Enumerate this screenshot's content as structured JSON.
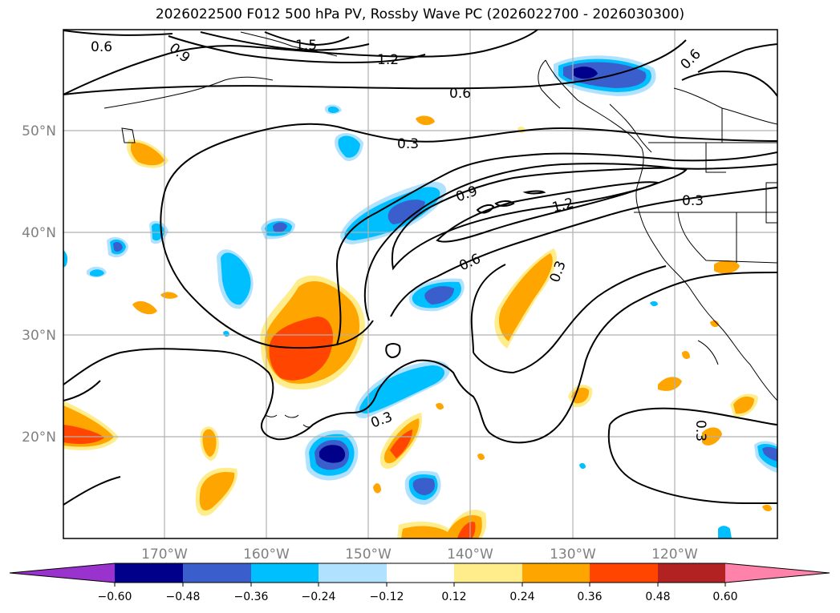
{
  "title": "2026022500 F012 500 hPa PV, Rossby Wave PC (2026022700 - 2026030300)",
  "map": {
    "lon_labels": [
      "170°W",
      "160°W",
      "150°W",
      "140°W",
      "130°W",
      "120°W"
    ],
    "lat_labels": [
      "50°N",
      "40°N",
      "30°N",
      "20°N"
    ],
    "contour_labels": [
      "0.6",
      "0.9",
      "1.5",
      "1.2",
      "0.6",
      "0.6",
      "0.3",
      "0.9",
      "1.2",
      "0.3",
      "0.6",
      "0.3",
      "0.3",
      "0.3"
    ]
  },
  "colorbar": {
    "ticks": [
      "−0.60",
      "−0.48",
      "−0.36",
      "−0.24",
      "−0.12",
      "0.12",
      "0.24",
      "0.36",
      "0.48",
      "0.60"
    ],
    "colors": [
      "#9a32cd",
      "#00008b",
      "#3a5fcd",
      "#00bfff",
      "#b0e2ff",
      "#ffffff",
      "#ffec8b",
      "#ffa500",
      "#ff4500",
      "#b22222",
      "#ff82ab"
    ]
  }
}
